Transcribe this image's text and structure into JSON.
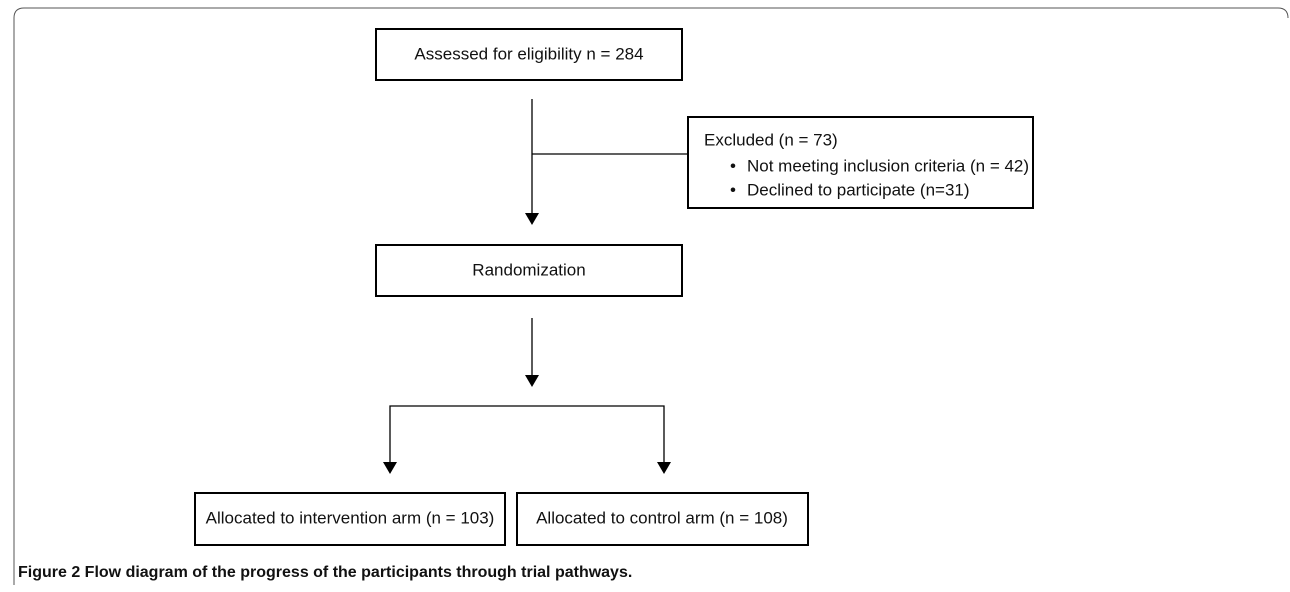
{
  "nodes": [
    {
      "label": "Assessed for eligibility n = 284"
    },
    {
      "label": "Excluded (n = 73)",
      "items": [
        "Not meeting inclusion criteria (n = 42)",
        "Declined to participate (n=31)"
      ]
    },
    {
      "label": "Randomization"
    },
    {
      "label": "Allocated to intervention arm (n = 103)"
    },
    {
      "label": "Allocated to control arm (n = 108)"
    }
  ],
  "caption": "Figure 2 Flow diagram of the progress of the participants through trial pathways."
}
